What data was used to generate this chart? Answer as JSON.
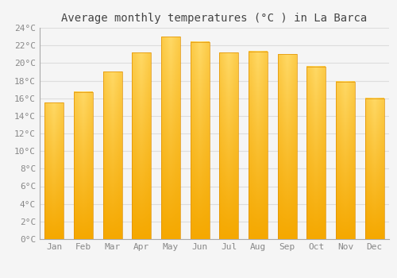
{
  "title": "Average monthly temperatures (°C ) in La Barca",
  "months": [
    "Jan",
    "Feb",
    "Mar",
    "Apr",
    "May",
    "Jun",
    "Jul",
    "Aug",
    "Sep",
    "Oct",
    "Nov",
    "Dec"
  ],
  "temperatures": [
    15.5,
    16.7,
    19.0,
    21.2,
    23.0,
    22.4,
    21.2,
    21.3,
    21.0,
    19.6,
    17.9,
    16.0
  ],
  "bar_color_bottom": "#F5A800",
  "bar_color_top": "#FFD966",
  "bar_color_edge": "#E09000",
  "ylim": [
    0,
    24
  ],
  "ytick_step": 2,
  "background_color": "#f5f5f5",
  "plot_bg_color": "#f5f5f5",
  "grid_color": "#dddddd",
  "title_fontsize": 10,
  "tick_fontsize": 8,
  "title_color": "#444444",
  "tick_color": "#888888"
}
